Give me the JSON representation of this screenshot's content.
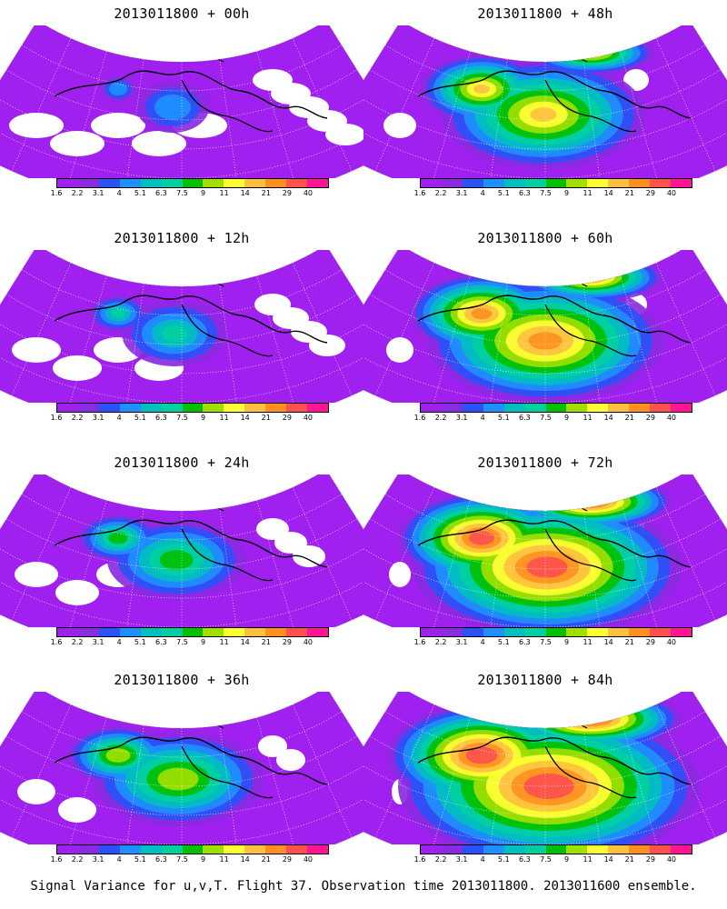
{
  "colorbar": {
    "colors": [
      "#a020f0",
      "#8a2be2",
      "#2a52f8",
      "#1e90ff",
      "#00bfbf",
      "#00d0a0",
      "#00c000",
      "#a0e000",
      "#ffff33",
      "#ffc040",
      "#ff9020",
      "#ff5050",
      "#ff1493"
    ],
    "labels": [
      "1.6",
      "2.2",
      "3.1",
      "4",
      "5.1",
      "6.3",
      "7.5",
      "9",
      "11",
      "14",
      "21",
      "29",
      "40"
    ]
  },
  "panels": [
    {
      "title": "2013011800 + 00h",
      "column": "left"
    },
    {
      "title": "2013011800 + 12h",
      "column": "left"
    },
    {
      "title": "2013011800 + 24h",
      "column": "left"
    },
    {
      "title": "2013011800 + 36h",
      "column": "left"
    },
    {
      "title": "2013011800 + 48h",
      "column": "right"
    },
    {
      "title": "2013011800 + 60h",
      "column": "right"
    },
    {
      "title": "2013011800 + 72h",
      "column": "right"
    },
    {
      "title": "2013011800 + 84h",
      "column": "right"
    }
  ],
  "footer": {
    "caption": "Signal Variance for u,v,T. Flight 37. Observation time 2013011800. 2013011600 ensemble."
  }
}
